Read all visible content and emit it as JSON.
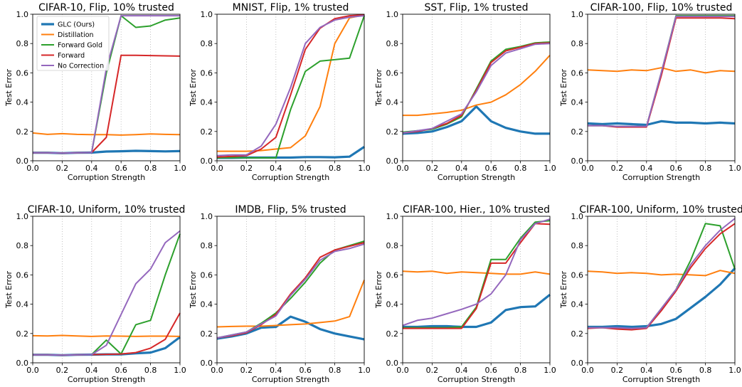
{
  "series_styles": [
    {
      "name": "GLC (Ours)",
      "color": "#1f77b4",
      "emphasis": "thick"
    },
    {
      "name": "Distillation",
      "color": "#ff7f0e",
      "emphasis": "normal"
    },
    {
      "name": "Forward Gold",
      "color": "#2ca02c",
      "emphasis": "normal"
    },
    {
      "name": "Forward",
      "color": "#d62728",
      "emphasis": "normal"
    },
    {
      "name": "No Correction",
      "color": "#9467bd",
      "emphasis": "normal"
    }
  ],
  "legend": {
    "placement": "upper-left",
    "panel": 0
  },
  "chart_data": [
    {
      "type": "line",
      "title": "CIFAR-10, Flip, 10% trusted",
      "xlabel": "Corruption Strength",
      "ylabel": "Test Error",
      "xlim": [
        0,
        1
      ],
      "ylim": [
        0,
        1
      ],
      "xticks": [
        "0.0",
        "0.2",
        "0.4",
        "0.6",
        "0.8",
        "1.0"
      ],
      "yticks": [
        "0.0",
        "0.2",
        "0.4",
        "0.6",
        "0.8",
        "1.0"
      ],
      "grid": "vertical-dotted",
      "x": [
        0,
        0.1,
        0.2,
        0.3,
        0.4,
        0.5,
        0.6,
        0.7,
        0.8,
        0.9,
        1.0
      ],
      "series": [
        {
          "name": "GLC (Ours)",
          "values": [
            0.055,
            0.055,
            0.052,
            0.055,
            0.056,
            0.063,
            0.065,
            0.068,
            0.066,
            0.064,
            0.066
          ]
        },
        {
          "name": "Distillation",
          "values": [
            0.19,
            0.18,
            0.185,
            0.18,
            0.178,
            0.178,
            0.175,
            0.178,
            0.183,
            0.18,
            0.178
          ]
        },
        {
          "name": "Forward Gold",
          "values": [
            0.055,
            0.055,
            0.052,
            0.055,
            0.056,
            0.6,
            0.99,
            0.91,
            0.92,
            0.96,
            0.975
          ]
        },
        {
          "name": "Forward",
          "values": [
            0.055,
            0.055,
            0.052,
            0.055,
            0.056,
            0.16,
            0.72,
            0.72,
            0.718,
            0.716,
            0.714
          ]
        },
        {
          "name": "No Correction",
          "values": [
            0.055,
            0.055,
            0.052,
            0.055,
            0.056,
            0.63,
            0.99,
            0.99,
            0.99,
            0.99,
            0.99
          ]
        }
      ]
    },
    {
      "type": "line",
      "title": "MNIST, Flip, 1% trusted",
      "xlabel": "Corruption Strength",
      "ylabel": "Test Error",
      "xlim": [
        0,
        1
      ],
      "ylim": [
        0,
        1
      ],
      "xticks": [
        "0.0",
        "0.2",
        "0.4",
        "0.6",
        "0.8",
        "1.0"
      ],
      "yticks": [
        "0.0",
        "0.2",
        "0.4",
        "0.6",
        "0.8",
        "1.0"
      ],
      "grid": "vertical-dotted",
      "x": [
        0,
        0.1,
        0.2,
        0.3,
        0.4,
        0.5,
        0.6,
        0.7,
        0.8,
        0.9,
        1.0
      ],
      "series": [
        {
          "name": "GLC (Ours)",
          "values": [
            0.02,
            0.02,
            0.022,
            0.022,
            0.022,
            0.022,
            0.025,
            0.025,
            0.024,
            0.028,
            0.095
          ]
        },
        {
          "name": "Distillation",
          "values": [
            0.065,
            0.065,
            0.065,
            0.07,
            0.08,
            0.09,
            0.17,
            0.37,
            0.8,
            0.975,
            0.995
          ]
        },
        {
          "name": "Forward Gold",
          "values": [
            0.02,
            0.022,
            0.02,
            0.02,
            0.02,
            0.35,
            0.61,
            0.68,
            0.69,
            0.7,
            0.99
          ]
        },
        {
          "name": "Forward",
          "values": [
            0.025,
            0.03,
            0.035,
            0.08,
            0.16,
            0.45,
            0.76,
            0.905,
            0.97,
            0.99,
            0.995
          ]
        },
        {
          "name": "No Correction",
          "values": [
            0.035,
            0.04,
            0.04,
            0.1,
            0.25,
            0.5,
            0.8,
            0.91,
            0.96,
            0.98,
            0.99
          ]
        }
      ]
    },
    {
      "type": "line",
      "title": "SST, Flip, 1% trusted",
      "xlabel": "Corruption Strength",
      "ylabel": "Test Error",
      "xlim": [
        0,
        1
      ],
      "ylim": [
        0,
        1
      ],
      "xticks": [
        "0.0",
        "0.2",
        "0.4",
        "0.6",
        "0.8",
        "1.0"
      ],
      "yticks": [
        "0.0",
        "0.2",
        "0.4",
        "0.6",
        "0.8",
        "1.0"
      ],
      "grid": "vertical-dotted",
      "x": [
        0,
        0.1,
        0.2,
        0.3,
        0.4,
        0.5,
        0.6,
        0.7,
        0.8,
        0.9,
        1.0
      ],
      "series": [
        {
          "name": "GLC (Ours)",
          "values": [
            0.185,
            0.19,
            0.2,
            0.23,
            0.27,
            0.37,
            0.27,
            0.225,
            0.2,
            0.185,
            0.185
          ]
        },
        {
          "name": "Distillation",
          "values": [
            0.31,
            0.31,
            0.32,
            0.33,
            0.345,
            0.38,
            0.4,
            0.45,
            0.52,
            0.61,
            0.72
          ]
        },
        {
          "name": "Forward Gold",
          "values": [
            0.195,
            0.205,
            0.215,
            0.25,
            0.3,
            0.49,
            0.68,
            0.76,
            0.78,
            0.805,
            0.81
          ]
        },
        {
          "name": "Forward",
          "values": [
            0.19,
            0.2,
            0.22,
            0.255,
            0.31,
            0.48,
            0.67,
            0.75,
            0.775,
            0.8,
            0.805
          ]
        },
        {
          "name": "No Correction",
          "values": [
            0.19,
            0.205,
            0.22,
            0.27,
            0.32,
            0.47,
            0.65,
            0.735,
            0.765,
            0.795,
            0.8
          ]
        }
      ]
    },
    {
      "type": "line",
      "title": "CIFAR-100, Flip, 10% trusted",
      "xlabel": "Corruption Strength",
      "ylabel": "Test Error",
      "xlim": [
        0,
        1
      ],
      "ylim": [
        0,
        1
      ],
      "xticks": [
        "0.0",
        "0.2",
        "0.4",
        "0.6",
        "0.8",
        "1.0"
      ],
      "yticks": [
        "0.0",
        "0.2",
        "0.4",
        "0.6",
        "0.8",
        "1.0"
      ],
      "grid": "vertical-dotted",
      "x": [
        0,
        0.1,
        0.2,
        0.3,
        0.4,
        0.5,
        0.6,
        0.7,
        0.8,
        0.9,
        1.0
      ],
      "series": [
        {
          "name": "GLC (Ours)",
          "values": [
            0.255,
            0.25,
            0.255,
            0.25,
            0.245,
            0.27,
            0.26,
            0.26,
            0.255,
            0.26,
            0.255
          ]
        },
        {
          "name": "Distillation",
          "values": [
            0.62,
            0.615,
            0.61,
            0.62,
            0.615,
            0.635,
            0.61,
            0.62,
            0.6,
            0.615,
            0.61
          ]
        },
        {
          "name": "Forward Gold",
          "values": [
            0.24,
            0.24,
            0.235,
            0.235,
            0.235,
            0.6,
            0.99,
            0.99,
            0.99,
            0.99,
            0.99
          ]
        },
        {
          "name": "Forward",
          "values": [
            0.24,
            0.24,
            0.23,
            0.23,
            0.23,
            0.58,
            0.975,
            0.975,
            0.975,
            0.975,
            0.97
          ]
        },
        {
          "name": "No Correction",
          "values": [
            0.24,
            0.24,
            0.235,
            0.235,
            0.235,
            0.6,
            0.985,
            0.985,
            0.985,
            0.985,
            0.985
          ]
        }
      ]
    },
    {
      "type": "line",
      "title": "CIFAR-10, Uniform, 10% trusted",
      "xlabel": "Corruption Strength",
      "ylabel": "Test Error",
      "xlim": [
        0,
        1
      ],
      "ylim": [
        0,
        1
      ],
      "xticks": [
        "0.0",
        "0.2",
        "0.4",
        "0.6",
        "0.8",
        "1.0"
      ],
      "yticks": [
        "0.0",
        "0.2",
        "0.4",
        "0.6",
        "0.8",
        "1.0"
      ],
      "grid": "vertical-dotted",
      "x": [
        0,
        0.1,
        0.2,
        0.3,
        0.4,
        0.5,
        0.6,
        0.7,
        0.8,
        0.9,
        1.0
      ],
      "series": [
        {
          "name": "GLC (Ours)",
          "values": [
            0.055,
            0.055,
            0.052,
            0.055,
            0.056,
            0.058,
            0.058,
            0.065,
            0.07,
            0.1,
            0.175
          ]
        },
        {
          "name": "Distillation",
          "values": [
            0.185,
            0.183,
            0.187,
            0.183,
            0.18,
            0.183,
            0.182,
            0.18,
            0.182,
            0.182,
            0.18
          ]
        },
        {
          "name": "Forward Gold",
          "values": [
            0.055,
            0.055,
            0.052,
            0.055,
            0.056,
            0.155,
            0.06,
            0.26,
            0.29,
            0.6,
            0.88
          ]
        },
        {
          "name": "Forward",
          "values": [
            0.055,
            0.055,
            0.052,
            0.055,
            0.056,
            0.058,
            0.06,
            0.07,
            0.1,
            0.16,
            0.34
          ]
        },
        {
          "name": "No Correction",
          "values": [
            0.055,
            0.055,
            0.052,
            0.055,
            0.056,
            0.12,
            0.33,
            0.54,
            0.64,
            0.82,
            0.9
          ]
        }
      ]
    },
    {
      "type": "line",
      "title": "IMDB, Flip, 5% trusted",
      "xlabel": "Corruption Strength",
      "ylabel": "Test Error",
      "xlim": [
        0,
        1
      ],
      "ylim": [
        0,
        1
      ],
      "xticks": [
        "0.0",
        "0.2",
        "0.4",
        "0.6",
        "0.8",
        "1.0"
      ],
      "yticks": [
        "0.0",
        "0.2",
        "0.4",
        "0.6",
        "0.8",
        "1.0"
      ],
      "grid": "vertical-dotted",
      "x": [
        0,
        0.1,
        0.2,
        0.3,
        0.4,
        0.5,
        0.6,
        0.7,
        0.8,
        0.9,
        1.0
      ],
      "series": [
        {
          "name": "GLC (Ours)",
          "values": [
            0.165,
            0.18,
            0.2,
            0.24,
            0.245,
            0.315,
            0.28,
            0.23,
            0.2,
            0.18,
            0.16
          ]
        },
        {
          "name": "Distillation",
          "values": [
            0.245,
            0.248,
            0.25,
            0.25,
            0.255,
            0.26,
            0.265,
            0.275,
            0.285,
            0.315,
            0.565
          ]
        },
        {
          "name": "Forward Gold",
          "values": [
            0.17,
            0.19,
            0.21,
            0.27,
            0.34,
            0.44,
            0.55,
            0.68,
            0.77,
            0.8,
            0.83
          ]
        },
        {
          "name": "Forward",
          "values": [
            0.17,
            0.185,
            0.205,
            0.26,
            0.33,
            0.47,
            0.58,
            0.72,
            0.77,
            0.795,
            0.82
          ]
        },
        {
          "name": "No Correction",
          "values": [
            0.17,
            0.19,
            0.21,
            0.265,
            0.32,
            0.46,
            0.57,
            0.7,
            0.76,
            0.78,
            0.81
          ]
        }
      ]
    },
    {
      "type": "line",
      "title": "CIFAR-100, Hier., 10% trusted",
      "xlabel": "Corruption Strength",
      "ylabel": "Test Error",
      "xlim": [
        0,
        1
      ],
      "ylim": [
        0,
        1
      ],
      "xticks": [
        "0.0",
        "0.2",
        "0.4",
        "0.6",
        "0.8",
        "1.0"
      ],
      "yticks": [
        "0.0",
        "0.2",
        "0.4",
        "0.6",
        "0.8",
        "1.0"
      ],
      "grid": "vertical-dotted",
      "x": [
        0,
        0.1,
        0.2,
        0.3,
        0.4,
        0.5,
        0.6,
        0.7,
        0.8,
        0.9,
        1.0
      ],
      "series": [
        {
          "name": "GLC (Ours)",
          "values": [
            0.245,
            0.245,
            0.25,
            0.25,
            0.245,
            0.245,
            0.275,
            0.36,
            0.38,
            0.385,
            0.465
          ]
        },
        {
          "name": "Distillation",
          "values": [
            0.625,
            0.62,
            0.625,
            0.61,
            0.62,
            0.615,
            0.61,
            0.605,
            0.605,
            0.62,
            0.605
          ]
        },
        {
          "name": "Forward Gold",
          "values": [
            0.24,
            0.24,
            0.24,
            0.24,
            0.245,
            0.38,
            0.705,
            0.705,
            0.85,
            0.96,
            0.97
          ]
        },
        {
          "name": "Forward",
          "values": [
            0.235,
            0.235,
            0.235,
            0.235,
            0.235,
            0.37,
            0.68,
            0.68,
            0.82,
            0.95,
            0.945
          ]
        },
        {
          "name": "No Correction",
          "values": [
            0.255,
            0.29,
            0.305,
            0.335,
            0.365,
            0.4,
            0.47,
            0.6,
            0.84,
            0.95,
            0.98
          ]
        }
      ]
    },
    {
      "type": "line",
      "title": "CIFAR-100, Uniform, 10% trusted",
      "xlabel": "Corruption Strength",
      "ylabel": "Test Error",
      "xlim": [
        0,
        1
      ],
      "ylim": [
        0,
        1
      ],
      "xticks": [
        "0.0",
        "0.2",
        "0.4",
        "0.6",
        "0.8",
        "1.0"
      ],
      "yticks": [
        "0.0",
        "0.2",
        "0.4",
        "0.6",
        "0.8",
        "1.0"
      ],
      "grid": "vertical-dotted",
      "x": [
        0,
        0.1,
        0.2,
        0.3,
        0.4,
        0.5,
        0.6,
        0.7,
        0.8,
        0.9,
        1.0
      ],
      "series": [
        {
          "name": "GLC (Ours)",
          "values": [
            0.245,
            0.245,
            0.25,
            0.245,
            0.25,
            0.265,
            0.3,
            0.375,
            0.45,
            0.535,
            0.645
          ]
        },
        {
          "name": "Distillation",
          "values": [
            0.625,
            0.62,
            0.61,
            0.615,
            0.61,
            0.6,
            0.605,
            0.6,
            0.595,
            0.63,
            0.61
          ]
        },
        {
          "name": "Forward Gold",
          "values": [
            0.24,
            0.24,
            0.235,
            0.235,
            0.24,
            0.37,
            0.5,
            0.7,
            0.95,
            0.935,
            0.64
          ]
        },
        {
          "name": "Forward",
          "values": [
            0.235,
            0.24,
            0.23,
            0.225,
            0.235,
            0.355,
            0.49,
            0.65,
            0.78,
            0.88,
            0.95
          ]
        },
        {
          "name": "No Correction",
          "values": [
            0.24,
            0.24,
            0.24,
            0.235,
            0.24,
            0.37,
            0.5,
            0.67,
            0.8,
            0.905,
            0.985
          ]
        }
      ]
    }
  ]
}
